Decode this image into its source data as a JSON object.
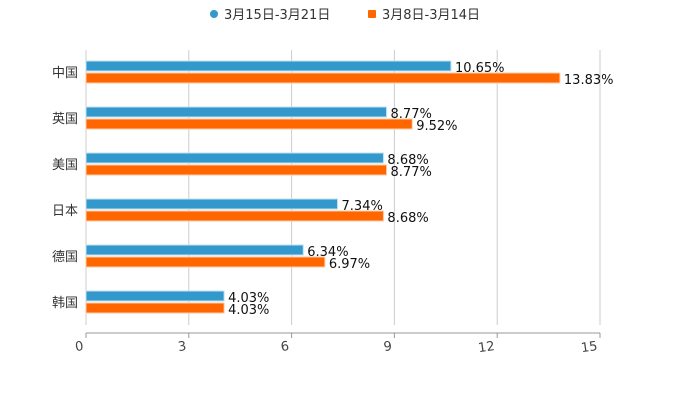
{
  "chart_data": {
    "type": "bar",
    "orientation": "horizontal",
    "title": "",
    "xlabel": "",
    "ylabel": "",
    "categories": [
      "中国",
      "英国",
      "美国",
      "日本",
      "德国",
      "韩国"
    ],
    "series": [
      {
        "name": "3月15日-3月21日",
        "color": "#3399cc",
        "values": [
          10.65,
          8.77,
          8.68,
          7.34,
          6.34,
          4.03
        ],
        "labels": [
          "10.65%",
          "8.77%",
          "8.68%",
          "7.34%",
          "6.34%",
          "4.03%"
        ]
      },
      {
        "name": "3月8日-3月14日",
        "color": "#ff6600",
        "values": [
          13.83,
          9.52,
          8.77,
          8.68,
          6.97,
          4.03
        ],
        "labels": [
          "13.83%",
          "9.52%",
          "8.77%",
          "8.68%",
          "6.97%",
          "4.03%"
        ]
      }
    ],
    "xlim": [
      0,
      15
    ],
    "xticks": [
      "0",
      "3",
      "6",
      "9",
      "12",
      "15"
    ],
    "grid": true,
    "legend_position": "top"
  },
  "legend": {
    "items": [
      {
        "label": "3月15日-3月21日",
        "color": "#3399cc",
        "shape": "circle"
      },
      {
        "label": "3月8日-3月14日",
        "color": "#ff6600",
        "shape": "square"
      }
    ]
  }
}
